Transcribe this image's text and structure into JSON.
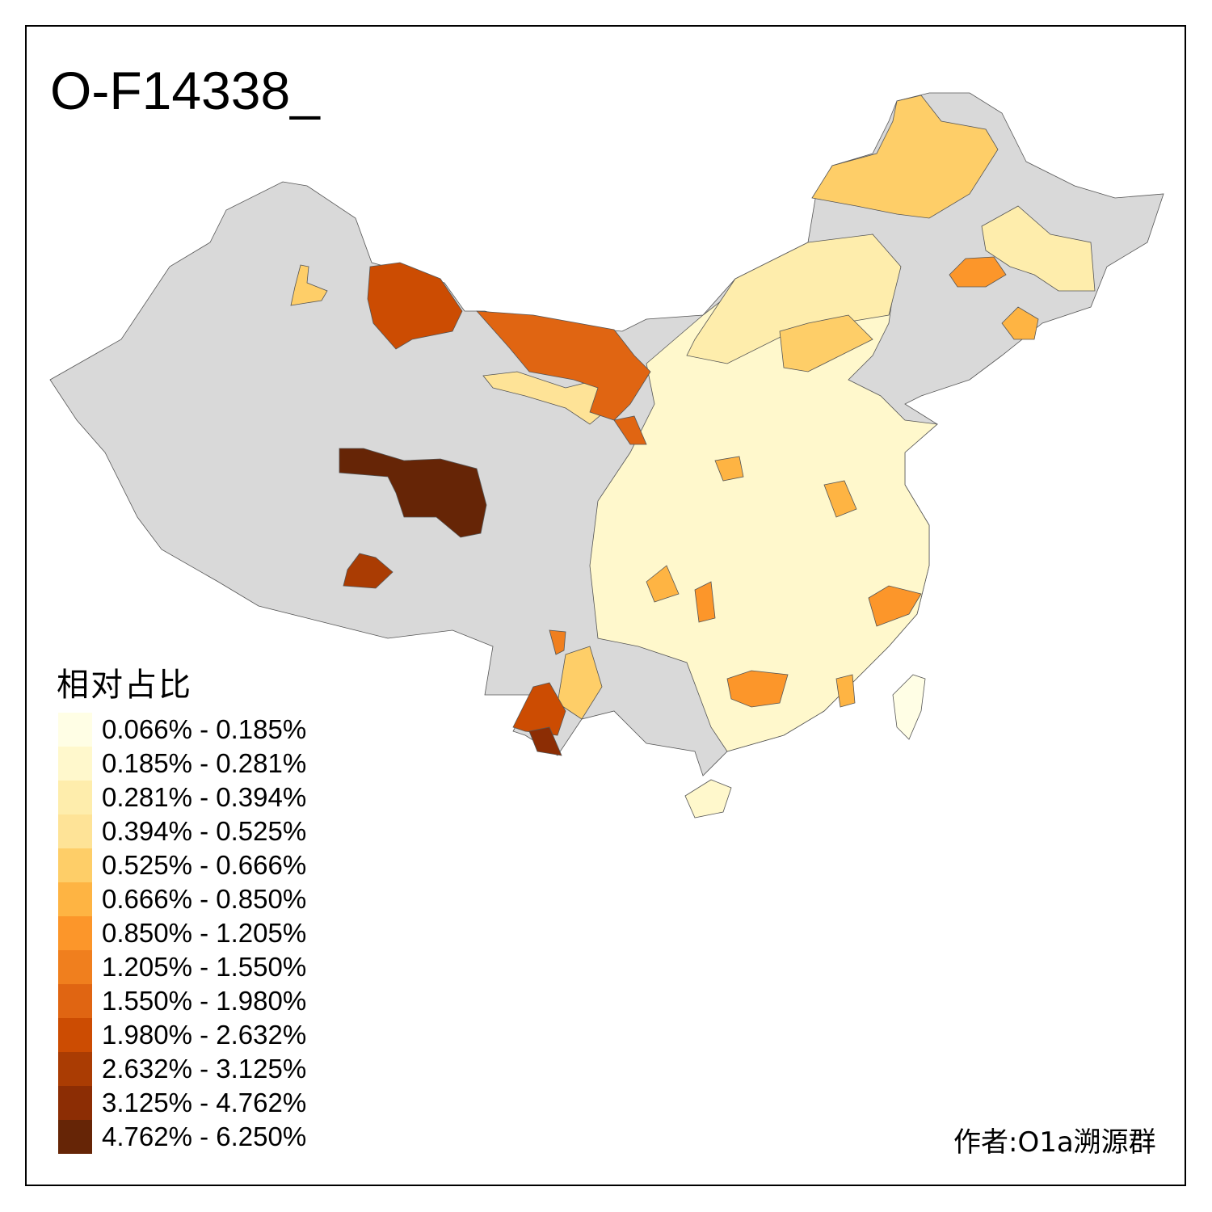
{
  "title": "O-F14338_",
  "legend": {
    "title": "相对占比",
    "no_data_color": "#D9D9D9",
    "classes": [
      {
        "label": "0.066% - 0.185%",
        "color": "#FFFEE5"
      },
      {
        "label": "0.185% - 0.281%",
        "color": "#FFF8CC"
      },
      {
        "label": "0.281% - 0.394%",
        "color": "#FEEDAC"
      },
      {
        "label": "0.394% - 0.525%",
        "color": "#FEE397"
      },
      {
        "label": "0.525% - 0.666%",
        "color": "#FECE68"
      },
      {
        "label": "0.666% - 0.850%",
        "color": "#FEB443"
      },
      {
        "label": "0.850% - 1.205%",
        "color": "#FC962A"
      },
      {
        "label": "1.205% - 1.550%",
        "color": "#F07F1E"
      },
      {
        "label": "1.550% - 1.980%",
        "color": "#E06512"
      },
      {
        "label": "1.980% - 2.632%",
        "color": "#CC4C02"
      },
      {
        "label": "2.632% - 3.125%",
        "color": "#AA3C03"
      },
      {
        "label": "3.125% - 4.762%",
        "color": "#8C2D04"
      },
      {
        "label": "4.762% - 6.250%",
        "color": "#662506"
      }
    ]
  },
  "credit": "作者:O1a溯源群"
}
